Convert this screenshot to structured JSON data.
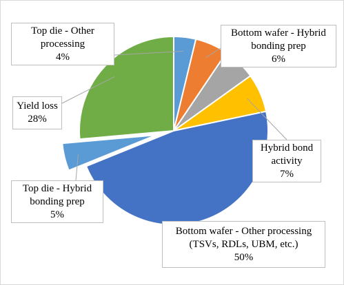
{
  "chart_data": {
    "type": "pie",
    "slices": [
      {
        "label_lines": [
          "Top die - Other",
          "processing"
        ],
        "percent_label": "4%",
        "value": 4,
        "color": "#5b9bd5"
      },
      {
        "label_lines": [
          "Bottom wafer - Hybrid",
          "bonding prep"
        ],
        "percent_label": "6%",
        "value": 6,
        "color": "#ed7d31"
      },
      {
        "label_lines": [
          "",
          ""
        ],
        "percent_label": "",
        "value": 6,
        "color": "#a5a5a5"
      },
      {
        "label_lines": [
          "Hybrid bond",
          "activity"
        ],
        "percent_label": "7%",
        "value": 7,
        "color": "#ffc000"
      },
      {
        "label_lines": [
          "Bottom wafer - Other processing",
          "(TSVs, RDLs, UBM, etc.)"
        ],
        "percent_label": "50%",
        "value": 50,
        "color": "#4472c4"
      },
      {
        "label_lines": [
          "Top die - Hybrid",
          "bonding prep"
        ],
        "percent_label": "5%",
        "value": 5,
        "color": "#5b9bd5"
      },
      {
        "label_lines": [
          "Yield loss",
          ""
        ],
        "percent_label": "28%",
        "value": 28,
        "color": "#70ad47"
      }
    ],
    "legend": "none"
  }
}
